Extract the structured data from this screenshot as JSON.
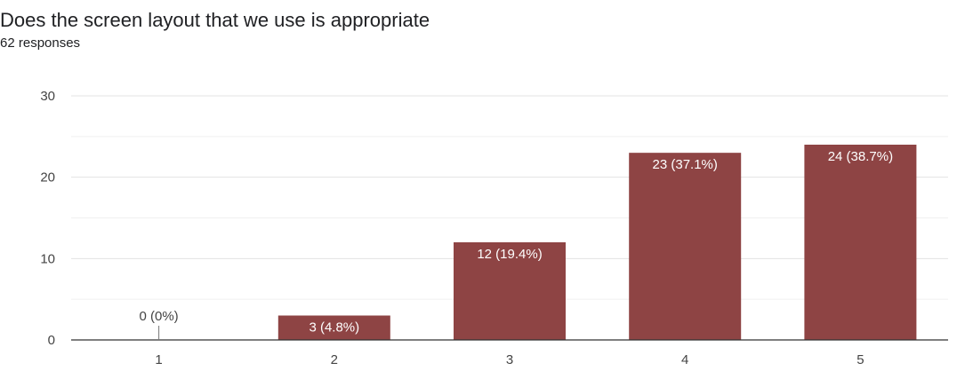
{
  "chart_data": {
    "type": "bar",
    "title": "Does the screen layout that we use is appropriate",
    "subtitle": "62 responses",
    "xlabel": "",
    "ylabel": "",
    "categories": [
      "1",
      "2",
      "3",
      "4",
      "5"
    ],
    "values": [
      0,
      3,
      12,
      23,
      24
    ],
    "data_labels": [
      "0 (0%)",
      "3 (4.8%)",
      "12 (19.4%)",
      "23 (37.1%)",
      "24 (38.7%)"
    ],
    "ylim": [
      0,
      30
    ],
    "yticks": [
      0,
      10,
      20,
      30
    ],
    "grid": true,
    "bar_color": "#8e4444",
    "label_inside_color": "#ffffff",
    "label_outside_color": "#444444"
  }
}
